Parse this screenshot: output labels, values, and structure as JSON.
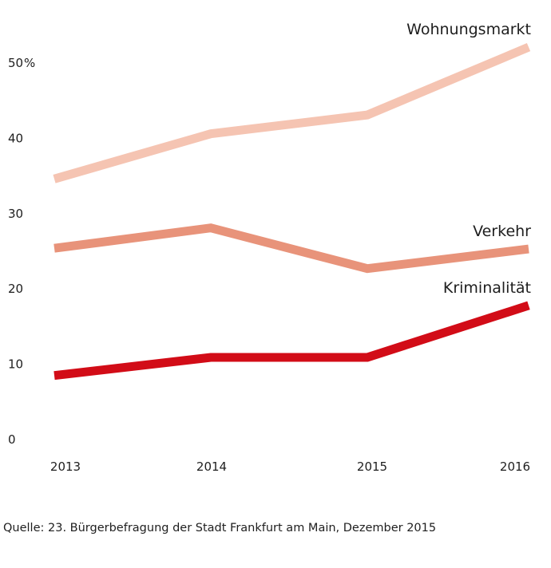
{
  "chart_data": {
    "type": "line",
    "title": "",
    "xlabel": "",
    "ylabel": "",
    "y_unit_label": "%",
    "x": [
      "2013",
      "2014",
      "2015",
      "2016"
    ],
    "ylim": [
      0,
      50
    ],
    "yticks": [
      "0",
      "10",
      "20",
      "30",
      "40",
      "50"
    ],
    "grid": false,
    "legend": "direct labels at line ends (right)",
    "series": [
      {
        "name": "Wohnungsmarkt",
        "color": "#f5c4b2",
        "values": [
          34.5,
          40.5,
          43.0,
          52.0
        ]
      },
      {
        "name": "Verkehr",
        "color": "#e8937a",
        "values": [
          25.3,
          28.0,
          22.6,
          25.2
        ]
      },
      {
        "name": "Kriminalität",
        "color": "#d20c17",
        "values": [
          8.4,
          10.8,
          10.8,
          17.7
        ]
      }
    ]
  },
  "footer": {
    "source": "Quelle: 23. Bürgerbefragung der Stadt Frankfurt am Main, Dezember 2015"
  }
}
